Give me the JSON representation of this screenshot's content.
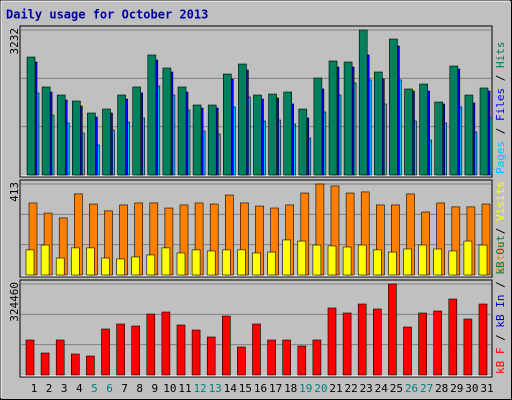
{
  "chart_data": [
    {
      "type": "bar",
      "title": "Daily usage for October 2013",
      "ylim": [
        0,
        3232
      ],
      "yticks": [
        3232
      ],
      "series": [
        {
          "name": "Pages",
          "color": "#00c0ff",
          "values": [
            1828,
            1337,
            1159,
            936,
            669,
            1003,
            1181,
            1271,
            1984,
            1783,
            1449,
            981,
            914,
            1516,
            1739,
            1204,
            1226,
            1137,
            825,
            1404,
            1783,
            2051,
            2118,
            1583,
            2118,
            1204,
            780,
            1159,
            1516,
            958,
            1271
          ]
        },
        {
          "name": "Files",
          "color": "#0000ff",
          "values": [
            2519,
            1850,
            1672,
            1538,
            1293,
            1382,
            1694,
            1828,
            2563,
            2296,
            1850,
            1493,
            1493,
            2140,
            2340,
            1694,
            1716,
            1583,
            1271,
            1917,
            2407,
            2407,
            2675,
            2140,
            2875,
            1872,
            1872,
            1583,
            2363,
            1605,
            1872
          ]
        },
        {
          "name": "Hits",
          "color": "#00805c",
          "values": [
            2630,
            1962,
            1783,
            1649,
            1382,
            1471,
            1783,
            1962,
            2675,
            2385,
            1962,
            1560,
            1560,
            2251,
            2474,
            1783,
            1805,
            1850,
            1471,
            2162,
            2541,
            2519,
            3232,
            2296,
            3031,
            1917,
            2028,
            1627,
            2430,
            1783,
            1939
          ]
        }
      ]
    },
    {
      "type": "bar",
      "ylim": [
        0,
        413
      ],
      "yticks": [
        413
      ],
      "series": [
        {
          "name": "Sites",
          "color": "#ff8000",
          "values": [
            327,
            281,
            259,
            368,
            322,
            291,
            318,
            327,
            327,
            304,
            318,
            327,
            322,
            363,
            327,
            313,
            304,
            318,
            372,
            413,
            404,
            372,
            377,
            318,
            318,
            368,
            286,
            327,
            309,
            309,
            322
          ]
        },
        {
          "name": "Visits",
          "color": "#ffff00",
          "values": [
            114,
            136,
            77,
            123,
            123,
            77,
            73,
            82,
            91,
            123,
            100,
            114,
            109,
            114,
            114,
            100,
            104,
            159,
            154,
            136,
            132,
            127,
            136,
            114,
            104,
            118,
            136,
            118,
            109,
            154,
            136
          ]
        }
      ]
    },
    {
      "type": "bar",
      "ylim": [
        0,
        324460
      ],
      "yticks": [
        324460
      ],
      "series": [
        {
          "name": "kB F",
          "color": "#ff0000",
          "values": [
            124775,
            78430,
            124775,
            74865,
            67735,
            163990,
            181815,
            174685,
            217465,
            224595,
            178250,
            160425,
            135470,
            210335,
            99820,
            181815,
            124775,
            124775,
            103385,
            124775,
            238855,
            221030,
            253115,
            235290,
            324460,
            171120,
            221030,
            228160,
            270940,
            199640,
            253115
          ]
        }
      ],
      "legend_only": [
        {
          "name": "kB In",
          "color": "#0000c0"
        },
        {
          "name": "kB Out",
          "color": "#008040"
        }
      ],
      "categories": [
        "1",
        "2",
        "3",
        "4",
        "5",
        "6",
        "7",
        "8",
        "9",
        "10",
        "11",
        "12",
        "13",
        "14",
        "15",
        "16",
        "17",
        "18",
        "19",
        "20",
        "21",
        "22",
        "23",
        "24",
        "25",
        "26",
        "27",
        "28",
        "29",
        "30",
        "31"
      ],
      "label_colors": [
        "#000000",
        "#000000",
        "#000000",
        "#000000",
        "#008080",
        "#008080",
        "#000000",
        "#000000",
        "#000000",
        "#000000",
        "#000000",
        "#008080",
        "#008080",
        "#000000",
        "#000000",
        "#000000",
        "#000000",
        "#000000",
        "#008080",
        "#008080",
        "#000000",
        "#000000",
        "#000000",
        "#000000",
        "#000000",
        "#008080",
        "#008080",
        "#000000",
        "#000000",
        "#000000",
        "#000000"
      ]
    }
  ]
}
